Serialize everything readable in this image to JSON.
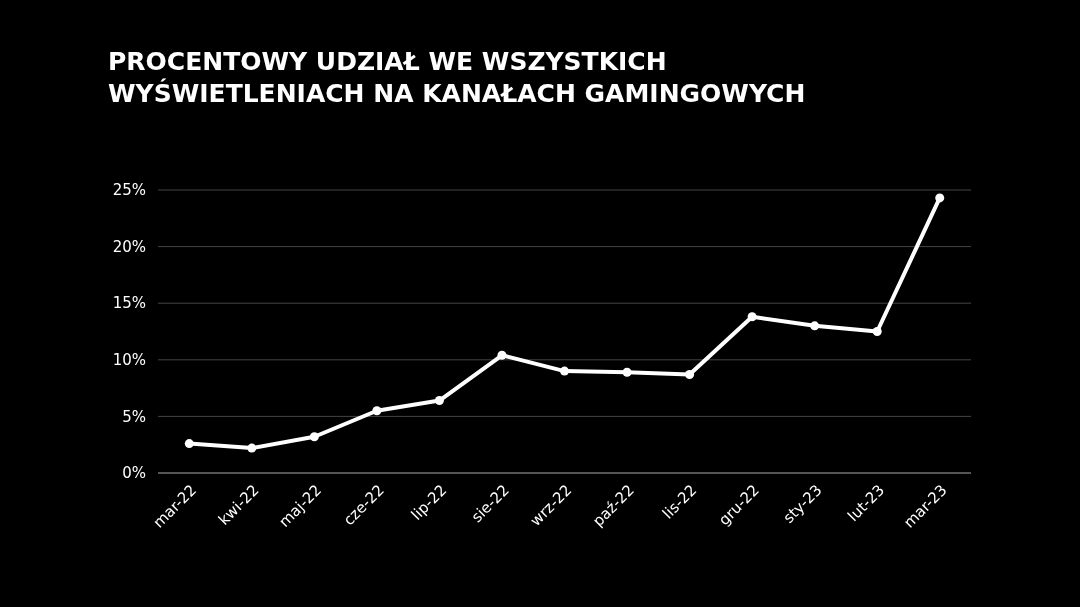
{
  "chart_data": {
    "type": "line",
    "title": "PROCENTOWY UDZIAŁ WE WSZYSTKICH WYŚWIETLENIACH NA KANAŁACH GAMINGOWYCH",
    "categories": [
      "mar-22",
      "kwi-22",
      "maj-22",
      "cze-22",
      "lip-22",
      "sie-22",
      "wrz-22",
      "paź-22",
      "lis-22",
      "gru-22",
      "sty-23",
      "lut-23",
      "mar-23"
    ],
    "series": [
      {
        "color": "#ffffff",
        "values": [
          2.6,
          2.2,
          3.2,
          5.5,
          6.4,
          10.4,
          9.0,
          8.9,
          8.7,
          13.8,
          13.0,
          12.5,
          24.3
        ]
      }
    ],
    "ylim": [
      0,
      25
    ],
    "yticks": [
      {
        "value": 0,
        "label": "0%"
      },
      {
        "value": 5,
        "label": "5%"
      },
      {
        "value": 10,
        "label": "10%"
      },
      {
        "value": 15,
        "label": "15%"
      },
      {
        "value": 20,
        "label": "20%"
      },
      {
        "value": 25,
        "label": "25%"
      }
    ],
    "grid": "y",
    "marker": "circle",
    "line_style": "solid"
  }
}
